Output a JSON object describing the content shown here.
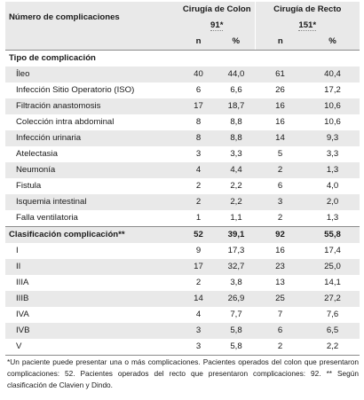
{
  "header": {
    "row_label": "Número de complicaciones",
    "group1": {
      "name": "Cirugía de Colon",
      "count": "91*"
    },
    "group2": {
      "name": "Cirugía de Recto",
      "count": "151*"
    },
    "col_n": "n",
    "col_pct": "%"
  },
  "section1": {
    "title": "Tipo de complicación",
    "rows": [
      {
        "label": "Íleo",
        "n1": "40",
        "p1": "44,0",
        "n2": "61",
        "p2": "40,4"
      },
      {
        "label": "Infección Sitio Operatorio (ISO)",
        "n1": "6",
        "p1": "6,6",
        "n2": "26",
        "p2": "17,2"
      },
      {
        "label": "Filtración anastomosis",
        "n1": "17",
        "p1": "18,7",
        "n2": "16",
        "p2": "10,6"
      },
      {
        "label": "Colección intra abdominal",
        "n1": "8",
        "p1": "8,8",
        "n2": "16",
        "p2": "10,6"
      },
      {
        "label": "Infección urinaria",
        "n1": "8",
        "p1": "8,8",
        "n2": "14",
        "p2": "9,3"
      },
      {
        "label": "Atelectasia",
        "n1": "3",
        "p1": "3,3",
        "n2": "5",
        "p2": "3,3"
      },
      {
        "label": "Neumonía",
        "n1": "4",
        "p1": "4,4",
        "n2": "2",
        "p2": "1,3"
      },
      {
        "label": "Fistula",
        "n1": "2",
        "p1": "2,2",
        "n2": "6",
        "p2": "4,0"
      },
      {
        "label": "Isquemia intestinal",
        "n1": "2",
        "p1": "2,2",
        "n2": "3",
        "p2": "2,0"
      },
      {
        "label": "Falla ventilatoria",
        "n1": "1",
        "p1": "1,1",
        "n2": "2",
        "p2": "1,3"
      }
    ]
  },
  "section2": {
    "title": "Clasificación complicación**",
    "n1": "52",
    "p1": "39,1",
    "n2": "92",
    "p2": "55,8",
    "rows": [
      {
        "label": "I",
        "n1": "9",
        "p1": "17,3",
        "n2": "16",
        "p2": "17,4"
      },
      {
        "label": "II",
        "n1": "17",
        "p1": "32,7",
        "n2": "23",
        "p2": "25,0"
      },
      {
        "label": "IIIA",
        "n1": "2",
        "p1": "3,8",
        "n2": "13",
        "p2": "14,1"
      },
      {
        "label": "IIIB",
        "n1": "14",
        "p1": "26,9",
        "n2": "25",
        "p2": "27,2"
      },
      {
        "label": "IVA",
        "n1": "4",
        "p1": "7,7",
        "n2": "7",
        "p2": "7,6"
      },
      {
        "label": "IVB",
        "n1": "3",
        "p1": "5,8",
        "n2": "6",
        "p2": "6,5"
      },
      {
        "label": "V",
        "n1": "3",
        "p1": "5,8",
        "n2": "2",
        "p2": "2,2"
      }
    ]
  },
  "footnote": "*Un paciente puede presentar una o más complicaciones. Pacientes operados del colon que presentaron complicaciones: 52. Pacientes operados del recto que presentaron complicaciones: 92. ** Según clasificación de Clavien y Dindo."
}
